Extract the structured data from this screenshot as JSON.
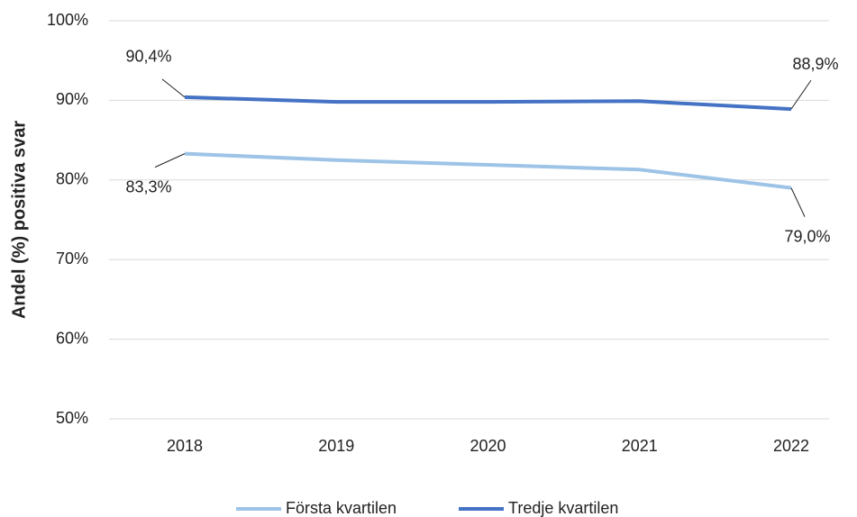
{
  "chart_data": {
    "type": "line",
    "y_label": "Andel (%) positiva svar",
    "categories": [
      "2018",
      "2019",
      "2020",
      "2021",
      "2022"
    ],
    "series": [
      {
        "name": "Första kvartilen",
        "color": "#9dc3e6",
        "values": [
          83.3,
          82.5,
          81.9,
          81.3,
          79.0
        ],
        "value_labels": [
          "83,3%",
          null,
          null,
          null,
          "79,0%"
        ]
      },
      {
        "name": "Tredje kvartilen",
        "color": "#4472c4",
        "values": [
          90.4,
          89.8,
          89.8,
          89.9,
          88.9
        ],
        "value_labels": [
          "90,4%",
          null,
          null,
          null,
          "88,9%"
        ]
      }
    ],
    "ylim": [
      50,
      100
    ],
    "yticks": [
      {
        "value": 50,
        "label": "50%"
      },
      {
        "value": 60,
        "label": "60%"
      },
      {
        "value": 70,
        "label": "70%"
      },
      {
        "value": 80,
        "label": "80%"
      },
      {
        "value": 90,
        "label": "90%"
      },
      {
        "value": 100,
        "label": "100%"
      }
    ],
    "grid": true,
    "legend": "bottom"
  }
}
